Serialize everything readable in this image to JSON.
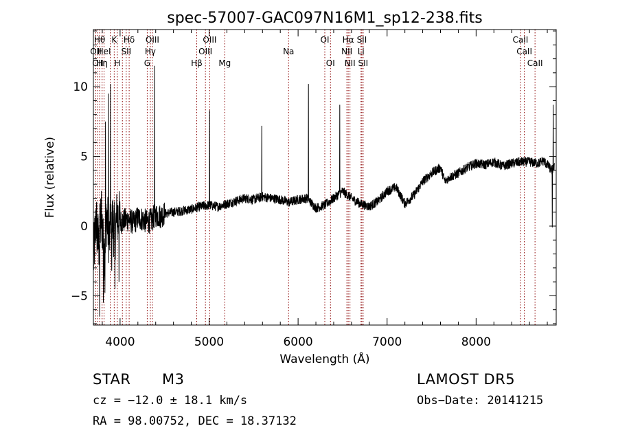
{
  "chart_data": {
    "type": "line",
    "title": "spec-57007-GAC097N16M1_sp12-238.fits",
    "xlabel": "Wavelength (Å)",
    "ylabel": "Flux (relative)",
    "xlim": [
      3700,
      8900
    ],
    "ylim": [
      -7.1,
      14.1
    ],
    "x_ticks": [
      {
        "value": 4000,
        "label": "4000"
      },
      {
        "value": 5000,
        "label": "5000"
      },
      {
        "value": 6000,
        "label": "6000"
      },
      {
        "value": 7000,
        "label": "7000"
      },
      {
        "value": 8000,
        "label": "8000"
      }
    ],
    "y_ticks": [
      {
        "value": -5,
        "label": "−5"
      },
      {
        "value": 0,
        "label": "0"
      },
      {
        "value": 5,
        "label": "5"
      },
      {
        "value": 10,
        "label": "10"
      }
    ],
    "line_colors": {
      "spectrum": "#000000",
      "markers": "#8b0000"
    },
    "series": [
      {
        "x": [
          3700,
          3730,
          3760,
          3790,
          3820,
          3850,
          3880,
          3910,
          3940,
          3970,
          4000,
          4050,
          4100,
          4150,
          4200,
          4250,
          4300,
          4350,
          4400,
          4450,
          4500,
          4600,
          4700,
          4800,
          4900,
          5000,
          5100,
          5200,
          5300,
          5400,
          5500,
          5600,
          5700,
          5800,
          5900,
          6000,
          6100,
          6200,
          6300,
          6400,
          6500,
          6600,
          6700,
          6800,
          6900,
          7000,
          7100,
          7200,
          7300,
          7400,
          7500,
          7600,
          7650,
          7700,
          7800,
          7900,
          8000,
          8100,
          8200,
          8300,
          8400,
          8500,
          8600,
          8700,
          8750,
          8800,
          8850,
          8880
        ],
        "y": [
          -2.5,
          0.5,
          -1.5,
          1.0,
          -2.0,
          0.8,
          -1.0,
          0.6,
          -0.5,
          0.8,
          0.3,
          0.4,
          0.5,
          0.2,
          0.6,
          0.5,
          0.3,
          0.4,
          0.8,
          0.7,
          0.9,
          1.0,
          1.1,
          1.2,
          1.4,
          1.5,
          1.4,
          1.6,
          1.8,
          2.0,
          1.9,
          2.1,
          2.0,
          1.9,
          1.7,
          1.9,
          2.0,
          1.3,
          1.5,
          2.0,
          2.5,
          2.0,
          1.6,
          1.4,
          1.8,
          2.5,
          2.8,
          1.6,
          2.2,
          3.2,
          3.8,
          4.2,
          3.2,
          3.5,
          3.8,
          4.2,
          4.5,
          4.4,
          4.6,
          4.3,
          4.5,
          4.6,
          4.6,
          4.5,
          4.7,
          4.4,
          4.0,
          4.2
        ]
      }
    ],
    "spikes": [
      {
        "x": 3835,
        "y": 7.5
      },
      {
        "x": 3870,
        "y": 9.5
      },
      {
        "x": 3892,
        "y": 10.2
      },
      {
        "x": 4385,
        "y": 11.5
      },
      {
        "x": 5005,
        "y": 8.3
      },
      {
        "x": 5592,
        "y": 7.2
      },
      {
        "x": 6115,
        "y": 10.2
      },
      {
        "x": 6468,
        "y": 8.7
      },
      {
        "x": 8866,
        "y": 8.7
      }
    ],
    "dips": [
      {
        "x": 3770,
        "y": -6.5
      },
      {
        "x": 3812,
        "y": -5.5
      },
      {
        "x": 3830,
        "y": -4.8
      },
      {
        "x": 3905,
        "y": -3.2
      },
      {
        "x": 3942,
        "y": -4.5
      },
      {
        "x": 3988,
        "y": -4.0
      },
      {
        "x": 8855,
        "y": -0.1
      }
    ],
    "lines": [
      {
        "x": 3727,
        "label": "OII",
        "row": 2
      },
      {
        "x": 3750,
        "label": "OII",
        "row": 3
      },
      {
        "x": 3770,
        "label": "Hθ",
        "row": 1
      },
      {
        "x": 3798,
        "label": "Hη",
        "row": 3
      },
      {
        "x": 3820,
        "label": "HeI",
        "row": 2
      },
      {
        "x": 3889,
        "label": "",
        "row": 0
      },
      {
        "x": 3934,
        "label": "K",
        "row": 1
      },
      {
        "x": 3969,
        "label": "H",
        "row": 3
      },
      {
        "x": 4026,
        "label": "",
        "row": 0
      },
      {
        "x": 4069,
        "label": "SII",
        "row": 2
      },
      {
        "x": 4102,
        "label": "Hδ",
        "row": 1
      },
      {
        "x": 4305,
        "label": "G",
        "row": 3
      },
      {
        "x": 4340,
        "label": "Hγ",
        "row": 2
      },
      {
        "x": 4363,
        "label": "OIII",
        "row": 1
      },
      {
        "x": 4861,
        "label": "Hβ",
        "row": 3
      },
      {
        "x": 4959,
        "label": "OIII",
        "row": 2
      },
      {
        "x": 5007,
        "label": "OIII",
        "row": 1
      },
      {
        "x": 5176,
        "label": "Mg",
        "row": 3
      },
      {
        "x": 5893,
        "label": "Na",
        "row": 2
      },
      {
        "x": 6300,
        "label": "OI",
        "row": 1
      },
      {
        "x": 6364,
        "label": "OI",
        "row": 3
      },
      {
        "x": 6548,
        "label": "NII",
        "row": 2
      },
      {
        "x": 6563,
        "label": "Hα",
        "row": 1
      },
      {
        "x": 6583,
        "label": "NII",
        "row": 3
      },
      {
        "x": 6707,
        "label": "Li",
        "row": 2
      },
      {
        "x": 6716,
        "label": "SII",
        "row": 1
      },
      {
        "x": 6731,
        "label": "SII",
        "row": 3
      },
      {
        "x": 8498,
        "label": "CaII",
        "row": 1
      },
      {
        "x": 8542,
        "label": "CaII",
        "row": 2
      },
      {
        "x": 8662,
        "label": "CaII",
        "row": 3
      }
    ]
  },
  "footer": {
    "object_class": "STAR",
    "subclass": "M3",
    "survey": "LAMOST  DR5",
    "redshift_text": "cz = −12.0 ± 18.1 km/s",
    "obs_date": "Obs−Date: 20141215",
    "coords": "RA =  98.00752, DEC =  18.37132"
  }
}
